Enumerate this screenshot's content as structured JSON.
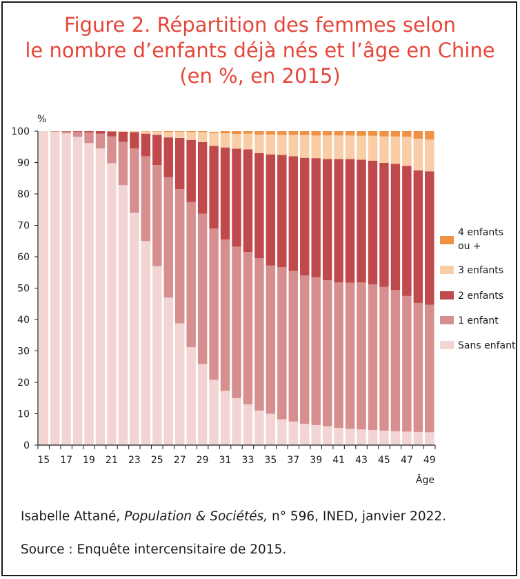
{
  "title": {
    "line1": "Figure 2. Répartition des femmes selon",
    "line2": "le nombre d’enfants déjà nés et l’âge en Chine",
    "line3": "(en %, en 2015)"
  },
  "credit": {
    "author": "Isabelle Attané, ",
    "publication": "Population & Sociétés,",
    "details": " n° 596, INED, janvier 2022."
  },
  "source": "Source : Enquête intercensitaire de 2015.",
  "chart_data": {
    "type": "bar",
    "stacked": true,
    "ylabel": "%",
    "xlabel": "Âge",
    "ylim": [
      0,
      100
    ],
    "yticks": [
      0,
      10,
      20,
      30,
      40,
      50,
      60,
      70,
      80,
      90,
      100
    ],
    "xtick_labels": [
      "15",
      "17",
      "19",
      "21",
      "23",
      "25",
      "27",
      "29",
      "31",
      "33",
      "35",
      "37",
      "39",
      "41",
      "43",
      "45",
      "47",
      "49"
    ],
    "categories": [
      "15",
      "16",
      "17",
      "18",
      "19",
      "20",
      "21",
      "22",
      "23",
      "24",
      "25",
      "26",
      "27",
      "28",
      "29",
      "30",
      "31",
      "32",
      "33",
      "34",
      "35",
      "36",
      "37",
      "38",
      "39",
      "40",
      "41",
      "42",
      "43",
      "44",
      "45",
      "46",
      "47",
      "48",
      "49"
    ],
    "legend_position": "right",
    "series": [
      {
        "name": "Sans enfant",
        "color": "#f2d4d3",
        "values": [
          100,
          99.8,
          99.3,
          98.2,
          96.2,
          94.5,
          89.8,
          82.8,
          74,
          65,
          57,
          47,
          38.8,
          31.2,
          25.8,
          20.8,
          17.3,
          15,
          13,
          11,
          10,
          8.2,
          7.5,
          6.8,
          6.4,
          6,
          5.5,
          5.2,
          5,
          4.8,
          4.6,
          4.4,
          4.3,
          4.2,
          4.1
        ]
      },
      {
        "name": "1 enfant",
        "color": "#d68e8e",
        "values": [
          0,
          0.2,
          0.6,
          1.6,
          3.4,
          4.7,
          8.5,
          13.8,
          20.5,
          27,
          32.2,
          38.3,
          42.7,
          46.2,
          47.9,
          48.2,
          48.2,
          48.2,
          48.5,
          48.5,
          47.2,
          48.5,
          48,
          47.2,
          47.1,
          46.5,
          46.3,
          46.5,
          46.8,
          46.4,
          45.8,
          45,
          43.2,
          41.1,
          40.6
        ]
      },
      {
        "name": "2 enfants",
        "color": "#c04a4b",
        "values": [
          0,
          0,
          0.1,
          0.2,
          0.4,
          0.8,
          1.6,
          3.2,
          5.2,
          7.2,
          9.6,
          12.7,
          16.3,
          19.8,
          22.8,
          26.3,
          29.3,
          31.2,
          32.7,
          33.5,
          35.4,
          35.7,
          36.5,
          37.5,
          37.9,
          38.6,
          39.3,
          39.4,
          39.1,
          39.4,
          39.5,
          40.2,
          41.4,
          42.2,
          42.5
        ]
      },
      {
        "name": "3 enfants",
        "color": "#f9cda5",
        "values": [
          0,
          0,
          0,
          0,
          0,
          0,
          0.1,
          0.2,
          0.3,
          0.7,
          1.1,
          1.7,
          2,
          2.5,
          3.2,
          4.1,
          4.5,
          4.7,
          5,
          5.9,
          6.3,
          6.4,
          6.8,
          7.2,
          7.2,
          7.5,
          7.5,
          7.5,
          7.6,
          7.9,
          8.4,
          8.7,
          9.3,
          10.1,
          10.1
        ]
      },
      {
        "name": "4 enfants ou +",
        "legend_line1": "4 enfants",
        "legend_line2": "ou +",
        "color": "#ee9345",
        "values": [
          0,
          0,
          0,
          0,
          0,
          0,
          0,
          0,
          0,
          0.1,
          0.1,
          0.3,
          0.2,
          0.3,
          0.3,
          0.4,
          0.7,
          0.9,
          0.8,
          1.1,
          1.1,
          1.2,
          1.2,
          1.3,
          1.4,
          1.4,
          1.4,
          1.4,
          1.5,
          1.5,
          1.7,
          1.7,
          1.8,
          2.4,
          2.7
        ]
      }
    ]
  }
}
